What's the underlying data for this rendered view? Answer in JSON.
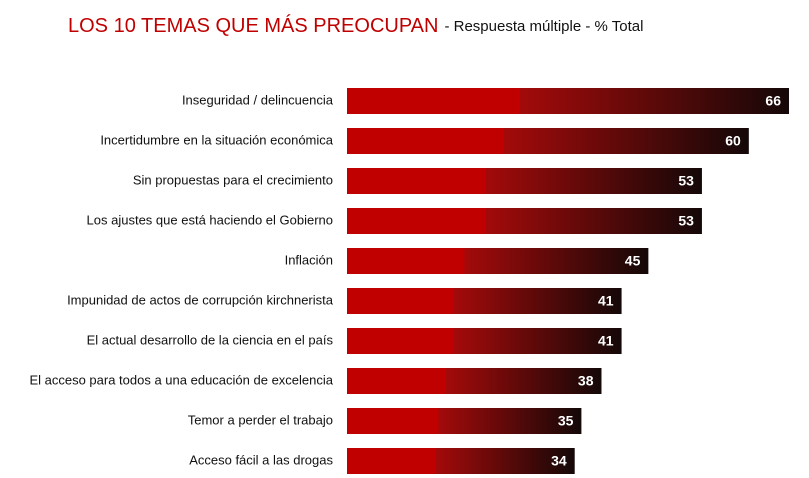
{
  "chart_data": {
    "type": "bar",
    "orientation": "horizontal",
    "title": "LOS 10 TEMAS QUE MÁS PREOCUPAN",
    "subtitle": "- Respuesta múltiple - % Total",
    "color": "#c00000",
    "categories": [
      "Inseguridad / delincuencia",
      "Incertidumbre en la situación económica",
      "Sin propuestas para el crecimiento",
      "Los ajustes que está haciendo el Gobierno",
      "Inflación",
      "Impunidad de actos de corrupción kirchnerista",
      "El actual desarrollo de la ciencia en el país",
      "El acceso para todos a una educación de excelencia",
      "Temor a perder el trabajo",
      "Acceso fácil a las drogas"
    ],
    "values": [
      66,
      60,
      53,
      53,
      45,
      41,
      41,
      38,
      35,
      34
    ]
  }
}
